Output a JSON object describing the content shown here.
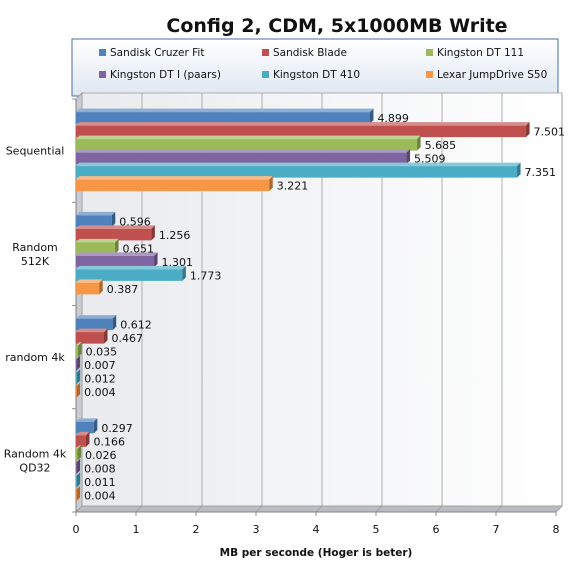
{
  "chart_data": {
    "type": "bar",
    "orientation": "horizontal",
    "title": "Config 2, CDM, 5x1000MB Write",
    "xlabel": "MB per seconde (Hoger is beter)",
    "ylabel": "",
    "xlim": [
      0,
      8
    ],
    "ticks": [
      "0",
      "1",
      "2",
      "3",
      "4",
      "5",
      "6",
      "7",
      "8"
    ],
    "grid": true,
    "legend_position": "top",
    "categories": [
      {
        "lines": [
          "Sequential"
        ]
      },
      {
        "lines": [
          "Random",
          "512K"
        ]
      },
      {
        "lines": [
          "random 4k"
        ]
      },
      {
        "lines": [
          "Random 4k",
          "QD32"
        ]
      }
    ],
    "series": [
      {
        "name": "Sandisk Cruzer Fit",
        "color": "#4f81bd",
        "values": [
          4.899,
          0.596,
          0.612,
          0.297
        ],
        "labels": [
          "4.899",
          "0.596",
          "0.612",
          "0.297"
        ]
      },
      {
        "name": "Sandisk Blade",
        "color": "#c0504d",
        "values": [
          7.501,
          1.256,
          0.467,
          0.166
        ],
        "labels": [
          "7.501",
          "1.256",
          "0.467",
          "0.166"
        ]
      },
      {
        "name": "Kingston DT 111",
        "color": "#9bbb59",
        "values": [
          5.685,
          0.651,
          0.035,
          0.026
        ],
        "labels": [
          "5.685",
          "0.651",
          "0.035",
          "0.026"
        ]
      },
      {
        "name": "Kingston DT I (paars)",
        "color": "#8064a2",
        "values": [
          5.509,
          1.301,
          0.007,
          0.008
        ],
        "labels": [
          "5.509",
          "1.301",
          "0.007",
          "0.008"
        ]
      },
      {
        "name": "Kingston DT 410",
        "color": "#4bacc6",
        "values": [
          7.351,
          1.773,
          0.012,
          0.011
        ],
        "labels": [
          "7.351",
          "1.773",
          "0.012",
          "0.011"
        ]
      },
      {
        "name": "Lexar JumpDrive S50",
        "color": "#f79646",
        "values": [
          3.221,
          0.387,
          0.004,
          0.004
        ],
        "labels": [
          "3.221",
          "0.387",
          "0.004",
          "0.004"
        ]
      }
    ]
  }
}
